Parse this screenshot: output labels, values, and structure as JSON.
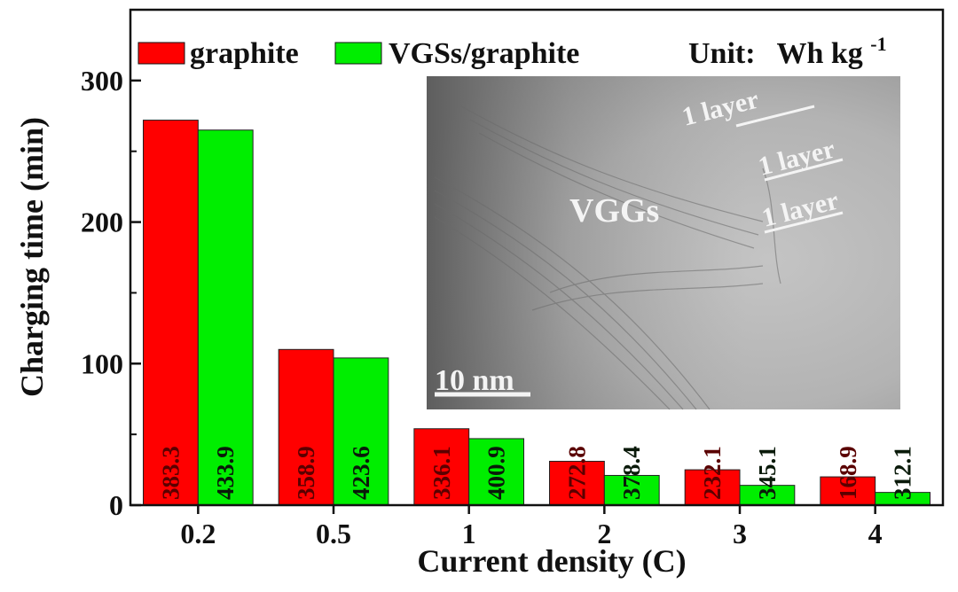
{
  "chart_data": {
    "type": "bar",
    "categories": [
      "0.2",
      "0.5",
      "1",
      "2",
      "3",
      "4"
    ],
    "series": [
      {
        "name": "graphite",
        "color": "#ff0000",
        "values": [
          272,
          110,
          54,
          31,
          25,
          20
        ],
        "labels": [
          "383.3",
          "358.9",
          "336.1",
          "272.8",
          "232.1",
          "168.9"
        ]
      },
      {
        "name": "VGSs/graphite",
        "color": "#00ee00",
        "values": [
          265,
          104,
          47,
          21,
          14,
          9
        ],
        "labels": [
          "433.9",
          "423.6",
          "400.9",
          "378.4",
          "345.1",
          "312.1"
        ]
      }
    ],
    "xlabel": "Current density (C)",
    "ylabel": "Charging time (min)",
    "ylim": [
      0,
      350
    ],
    "yticks": [
      0,
      100,
      200,
      300
    ],
    "unit_note": {
      "prefix": "Unit:",
      "unit": "Wh kg",
      "sup": "-1"
    },
    "grid": false,
    "legend_position": "top"
  },
  "inset": {
    "main_label": "VGGs",
    "layer_labels": [
      "1 layer",
      "1 layer",
      "1 layer"
    ],
    "scale_bar": "10 nm"
  }
}
